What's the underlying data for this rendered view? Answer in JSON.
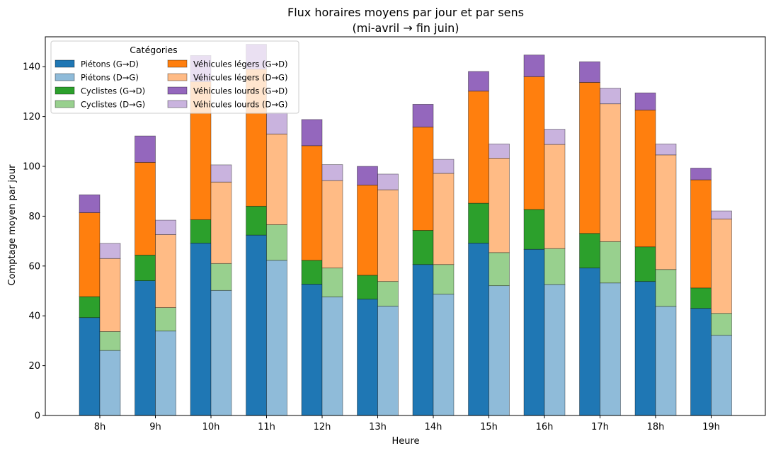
{
  "chart_data": {
    "type": "bar",
    "subtype": "stacked-grouped",
    "title": "Flux horaires moyens par jour et par sens",
    "subtitle": "(mi-avril → fin juin)",
    "xlabel": "Heure",
    "ylabel": "Comptage moyen par jour",
    "ylim": [
      0,
      152
    ],
    "yticks": [
      0,
      20,
      40,
      60,
      80,
      100,
      120,
      140
    ],
    "categories": [
      "8h",
      "9h",
      "10h",
      "11h",
      "12h",
      "13h",
      "14h",
      "15h",
      "16h",
      "17h",
      "18h",
      "19h"
    ],
    "legend_title": "Catégories",
    "legend_position": "top-left",
    "groups": [
      {
        "direction": "G→D",
        "series": [
          {
            "name": "Piétons (G→D)",
            "color": "#1f77b4",
            "values": [
              39.3,
              54.1,
              69.2,
              72.4,
              52.7,
              46.7,
              60.6,
              69.2,
              66.7,
              59.2,
              53.8,
              43.0
            ]
          },
          {
            "name": "Cyclistes (G→D)",
            "color": "#2ca02c",
            "values": [
              8.4,
              10.3,
              9.4,
              11.6,
              9.6,
              9.6,
              13.7,
              16.0,
              16.0,
              13.9,
              13.9,
              8.2
            ]
          },
          {
            "name": "Véhicules légers (G→D)",
            "color": "#ff7f0e",
            "values": [
              33.7,
              37.2,
              55.4,
              55.0,
              46.0,
              36.2,
              41.5,
              45.0,
              53.3,
              60.6,
              54.9,
              43.4
            ]
          },
          {
            "name": "Véhicules lourds (G→D)",
            "color": "#9467bd",
            "values": [
              7.2,
              10.6,
              10.5,
              10.0,
              10.5,
              7.5,
              9.1,
              7.9,
              8.7,
              8.3,
              6.9,
              4.7
            ]
          }
        ]
      },
      {
        "direction": "D→G",
        "series": [
          {
            "name": "Piétons (D→G)",
            "color": "#8fbbd9",
            "values": [
              26.1,
              33.9,
              50.2,
              62.3,
              47.6,
              43.9,
              48.7,
              52.1,
              52.6,
              53.2,
              43.8,
              32.2
            ]
          },
          {
            "name": "Cyclistes (D→G)",
            "color": "#98d08e",
            "values": [
              7.6,
              9.4,
              10.8,
              14.3,
              11.6,
              9.9,
              11.9,
              13.3,
              14.4,
              16.6,
              14.8,
              8.8
            ]
          },
          {
            "name": "Véhicules légers (D→G)",
            "color": "#ffbb85",
            "values": [
              29.3,
              29.3,
              32.7,
              36.4,
              35.1,
              36.8,
              36.6,
              37.9,
              41.8,
              55.3,
              46.0,
              37.9
            ]
          },
          {
            "name": "Véhicules lourds (D→G)",
            "color": "#c9b3de",
            "values": [
              6.1,
              5.8,
              6.9,
              8.5,
              6.4,
              6.3,
              5.6,
              5.7,
              6.1,
              6.3,
              4.4,
              3.2
            ]
          }
        ]
      }
    ]
  }
}
